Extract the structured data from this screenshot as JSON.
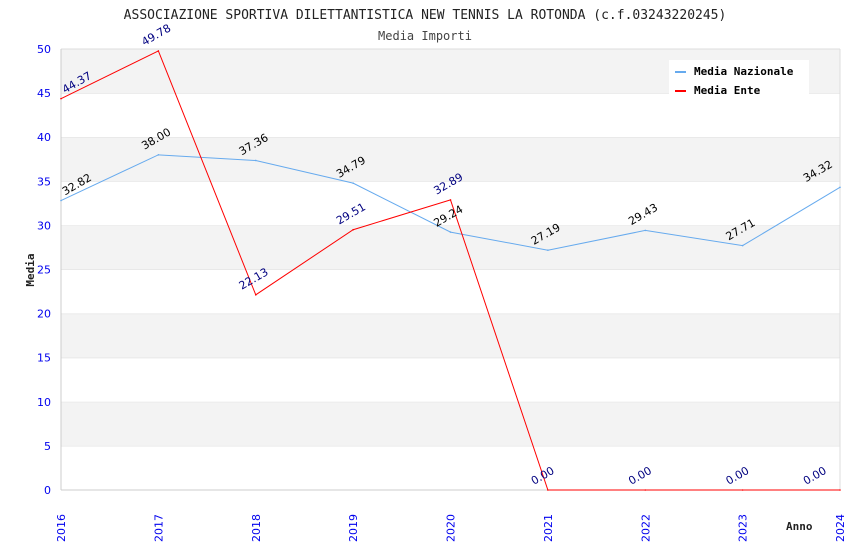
{
  "chart_data": {
    "type": "line",
    "title": "ASSOCIAZIONE SPORTIVA DILETTANTISTICA NEW TENNIS LA ROTONDA (c.f.03243220245)",
    "subtitle": "Media Importi",
    "xlabel": "Anno",
    "ylabel": "Media",
    "x": [
      "2016",
      "2017",
      "2018",
      "2019",
      "2020",
      "2021",
      "2022",
      "2023",
      "2024"
    ],
    "ylim": [
      0,
      50
    ],
    "yticks": [
      "0",
      "5",
      "10",
      "15",
      "20",
      "25",
      "30",
      "35",
      "40",
      "45",
      "50"
    ],
    "grid": true,
    "legend_position": "top-right",
    "series": [
      {
        "name": "Media Nazionale",
        "color": "#66aaee",
        "label_color": "#000000",
        "values": [
          32.82,
          38.0,
          37.36,
          34.79,
          29.24,
          27.19,
          29.43,
          27.71,
          34.32
        ],
        "labels": [
          "32.82",
          "38.00",
          "37.36",
          "34.79",
          "29.24",
          "27.19",
          "29.43",
          "27.71",
          "34.32"
        ]
      },
      {
        "name": "Media Ente",
        "color": "#ff0000",
        "label_color": "#000080",
        "values": [
          44.37,
          49.78,
          22.13,
          29.51,
          32.89,
          0,
          0,
          0,
          0
        ],
        "labels": [
          "44.37",
          "49.78",
          "22.13",
          "29.51",
          "32.89",
          "0.00",
          "0.00",
          "0.00",
          "0.00"
        ]
      }
    ]
  }
}
